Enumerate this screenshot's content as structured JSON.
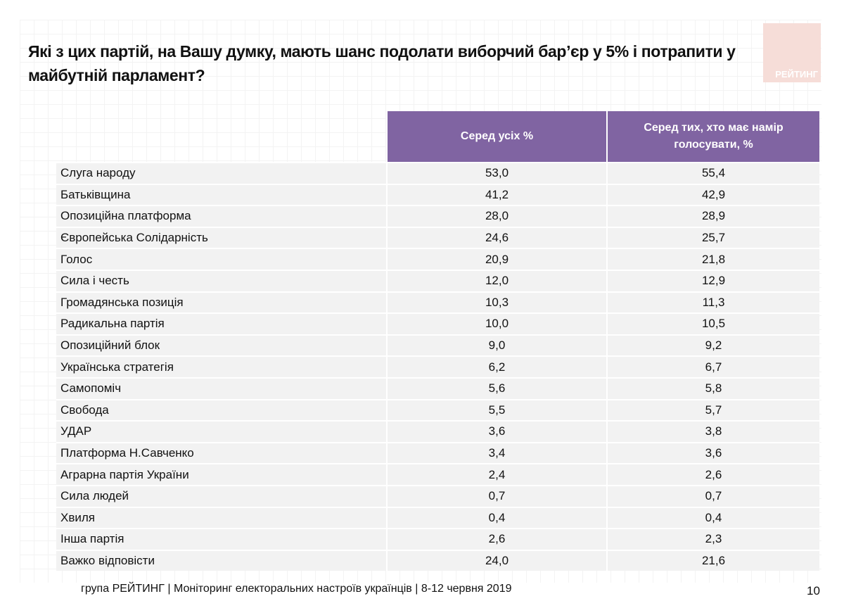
{
  "title": "Які з цих партій, на Вашу думку, мають шанс подолати виборчий бар’єр у 5% і потрапити у майбутній парламент?",
  "logo": {
    "text": "РЕЙТИНГ",
    "color": "#f6ddd8"
  },
  "table": {
    "header_color": "#8064a2",
    "columns": [
      "Серед усіх %",
      "Серед тих, хто має намір голосувати, %"
    ],
    "rows": [
      {
        "label": "Слуга народу",
        "all": "53,0",
        "voters": "55,4"
      },
      {
        "label": "Батьківщина",
        "all": "41,2",
        "voters": "42,9"
      },
      {
        "label": "Опозиційна платформа",
        "all": "28,0",
        "voters": "28,9"
      },
      {
        "label": "Європейська Солідарність",
        "all": "24,6",
        "voters": "25,7"
      },
      {
        "label": "Голос",
        "all": "20,9",
        "voters": "21,8"
      },
      {
        "label": "Сила і честь",
        "all": "12,0",
        "voters": "12,9"
      },
      {
        "label": "Громадянська позиція",
        "all": "10,3",
        "voters": "11,3"
      },
      {
        "label": "Радикальна партія",
        "all": "10,0",
        "voters": "10,5"
      },
      {
        "label": "Опозиційний блок",
        "all": "9,0",
        "voters": "9,2"
      },
      {
        "label": "Українська стратегія",
        "all": "6,2",
        "voters": "6,7"
      },
      {
        "label": "Самопоміч",
        "all": "5,6",
        "voters": "5,8"
      },
      {
        "label": "Свобода",
        "all": "5,5",
        "voters": "5,7"
      },
      {
        "label": "УДАР",
        "all": "3,6",
        "voters": "3,8"
      },
      {
        "label": "Платформа Н.Савченко",
        "all": "3,4",
        "voters": "3,6"
      },
      {
        "label": "Аграрна партія України",
        "all": "2,4",
        "voters": "2,6"
      },
      {
        "label": "Сила людей",
        "all": "0,7",
        "voters": "0,7"
      },
      {
        "label": "Хвиля",
        "all": "0,4",
        "voters": "0,4"
      },
      {
        "label": "Інша партія",
        "all": "2,6",
        "voters": "2,3"
      },
      {
        "label": "Важко відповісти",
        "all": "24,0",
        "voters": "21,6"
      }
    ]
  },
  "footer": "група РЕЙТИНГ | Моніторинг електоральних настроїв українців  | 8-12 червня 2019",
  "page_number": "10"
}
